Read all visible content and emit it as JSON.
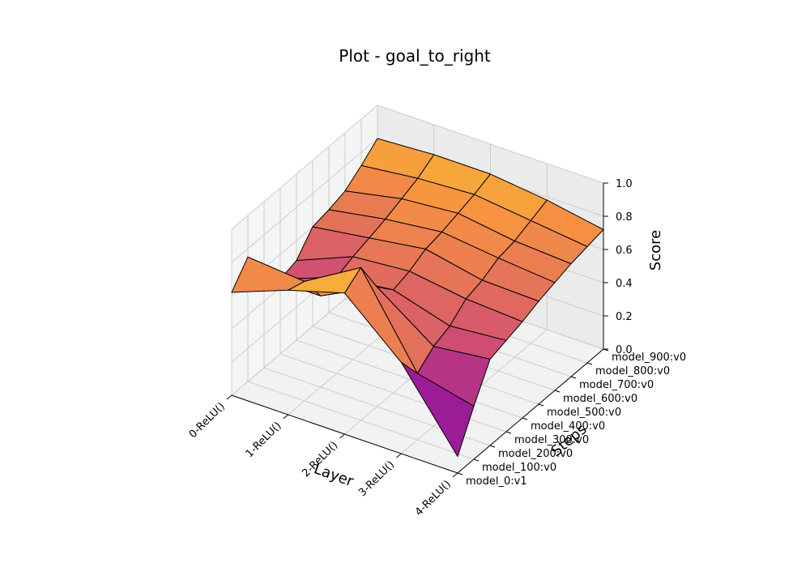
{
  "chart_data": {
    "type": "surface",
    "title": "Plot - goal_to_right",
    "xlabel": "Layer",
    "ylabel": "Steps",
    "zlabel": "Score",
    "x_categories": [
      "0-ReLU()",
      "1-ReLU()",
      "2-ReLU()",
      "3-ReLU()",
      "4-ReLU()"
    ],
    "y_categories": [
      "model_0:v1",
      "model_100:v0",
      "model_200:v0",
      "model_300:v0",
      "model_400:v0",
      "model_500:v0",
      "model_600:v0",
      "model_700:v0",
      "model_800:v0",
      "model_900:v0"
    ],
    "z_ticks": [
      "0.0",
      "0.2",
      "0.4",
      "0.6",
      "0.8",
      "1.0"
    ],
    "zlim": [
      0,
      1
    ],
    "colormap": "plasma",
    "grid": true,
    "z_values": [
      [
        0.62,
        0.75,
        0.55,
        0.45,
        0.48,
        0.6,
        0.62,
        0.65,
        0.72,
        0.8
      ],
      [
        0.75,
        0.72,
        0.55,
        0.58,
        0.62,
        0.65,
        0.68,
        0.72,
        0.76,
        0.82
      ],
      [
        0.85,
        0.92,
        0.72,
        0.62,
        0.65,
        0.7,
        0.72,
        0.75,
        0.78,
        0.82
      ],
      [
        0.55,
        0.4,
        0.48,
        0.52,
        0.6,
        0.63,
        0.68,
        0.7,
        0.74,
        0.78
      ],
      [
        0.1,
        0.32,
        0.52,
        0.55,
        0.58,
        0.62,
        0.65,
        0.68,
        0.7,
        0.72
      ]
    ]
  }
}
